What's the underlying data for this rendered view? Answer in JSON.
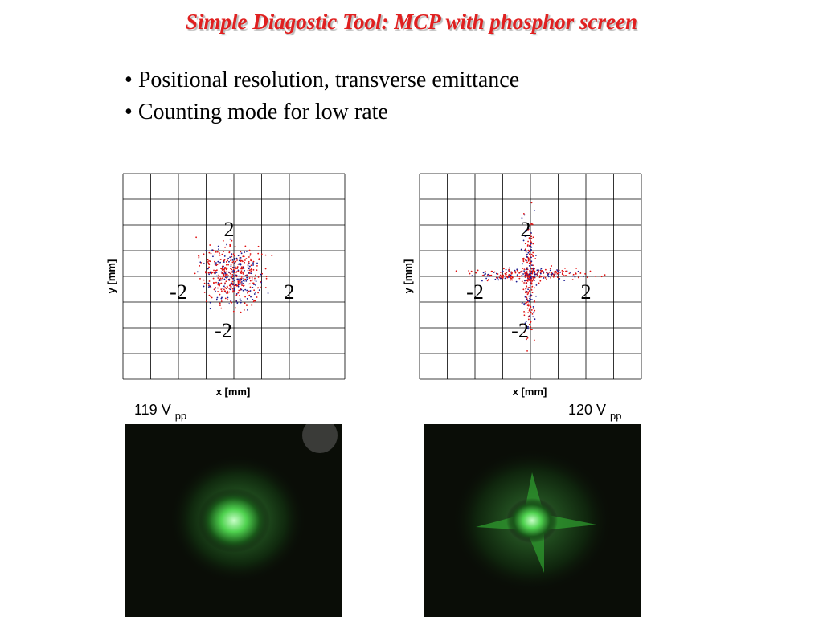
{
  "title": "Simple Diagostic Tool: MCP with phosphor screen",
  "bullets": [
    "Positional resolution, transverse emittance",
    "Counting mode for low rate"
  ],
  "plots": [
    {
      "y_label": "y [mm]",
      "x_label": "x [mm]",
      "top": "2",
      "left": "-2",
      "right": "2",
      "bottom": "-2",
      "voltage": "119 V",
      "voltage_sub": "pp"
    },
    {
      "y_label": "y [mm]",
      "x_label": "x [mm]",
      "top": "2",
      "left": "-2",
      "right": "2",
      "bottom": "-2",
      "voltage": "120 V",
      "voltage_sub": "pp"
    }
  ]
}
